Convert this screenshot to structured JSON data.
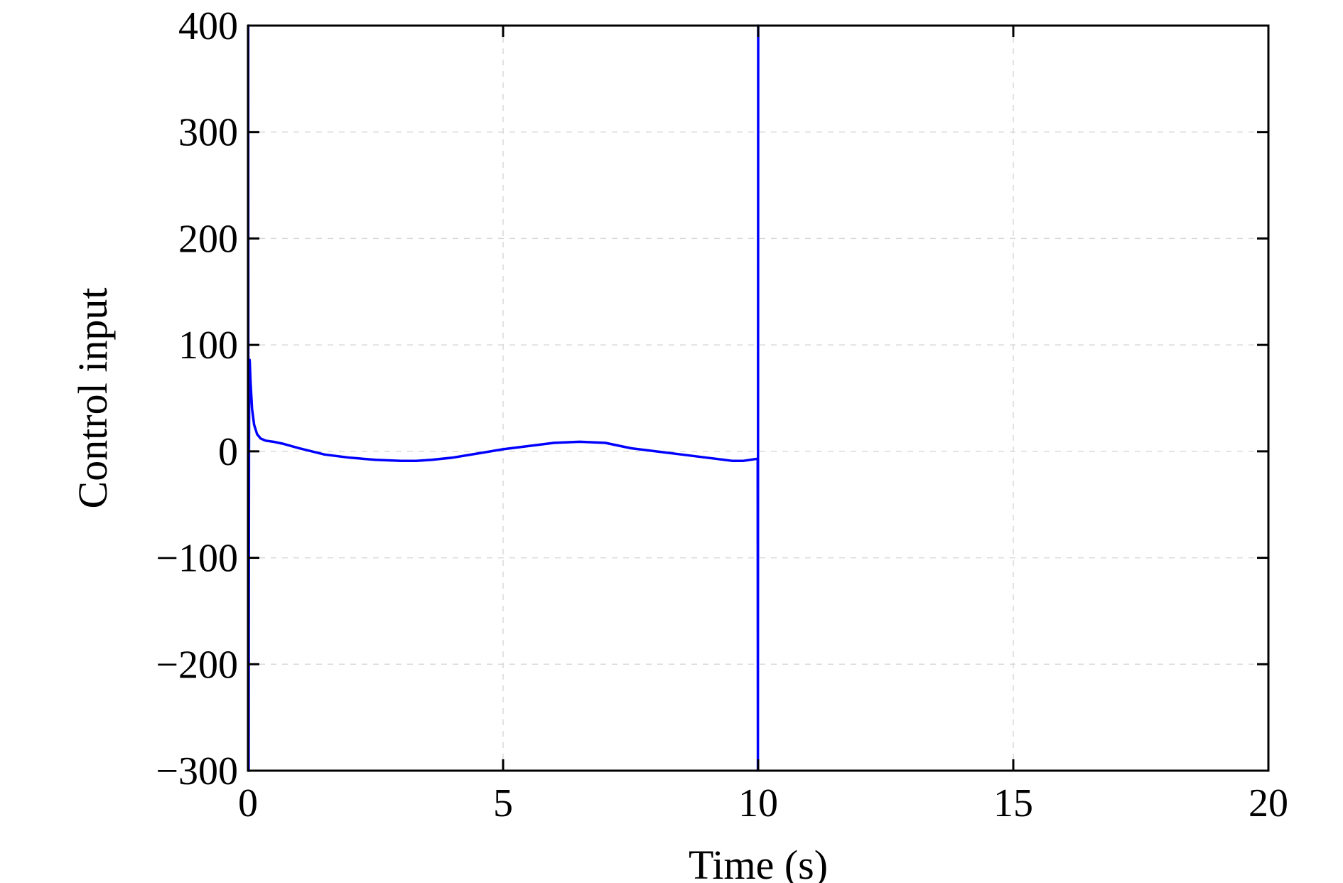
{
  "chart_data": {
    "type": "line",
    "title": "",
    "xlabel": "Time (s)",
    "ylabel": "Control input",
    "xlim": [
      0,
      20
    ],
    "ylim": [
      -300,
      400
    ],
    "x_ticks": [
      0,
      5,
      10,
      15,
      20
    ],
    "y_ticks": [
      -300,
      -200,
      -100,
      0,
      100,
      200,
      300,
      400
    ],
    "x_tick_labels": [
      "0",
      "5",
      "10",
      "15",
      "20"
    ],
    "y_tick_labels": [
      "−300",
      "−200",
      "−100",
      "0",
      "100",
      "200",
      "300",
      "400"
    ],
    "grid": true,
    "legend": "none",
    "series": [
      {
        "color": "#0000ff",
        "x": [
          0,
          0.004,
          0.008,
          0.012,
          0.016,
          0.02,
          0.025,
          0.03,
          0.035,
          0.05,
          0.08,
          0.12,
          0.18,
          0.25,
          0.35,
          0.5,
          0.7,
          1.0,
          1.5,
          2.0,
          2.5,
          3.0,
          3.3,
          3.6,
          4.0,
          4.5,
          5.0,
          5.5,
          6.0,
          6.5,
          7.0,
          7.5,
          8.0,
          8.5,
          9.0,
          9.5,
          9.7,
          9.98,
          9.99,
          9.995,
          10.0,
          10.005
        ],
        "y": [
          400,
          400,
          -300,
          -300,
          -150,
          0,
          80,
          86,
          84,
          65,
          40,
          25,
          16,
          12,
          10,
          9,
          7,
          3,
          -3,
          -6,
          -8,
          -9,
          -9,
          -8,
          -6,
          -2,
          2,
          5,
          8,
          9,
          8,
          3,
          0,
          -3,
          -6,
          -9,
          -9,
          -7,
          -7,
          -300,
          400,
          400
        ]
      }
    ]
  }
}
